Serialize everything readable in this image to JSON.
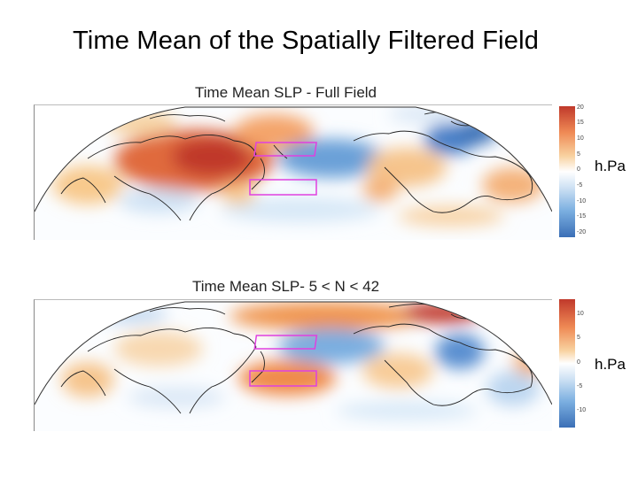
{
  "slide": {
    "title": "Time Mean of the Spatially Filtered Field"
  },
  "panels": [
    {
      "title": "Time Mean SLP - Full Field",
      "unit": "h.Pa",
      "colorbar_ticks": [
        "20",
        "15",
        "10",
        "5",
        "0",
        "-5",
        "-10",
        "-15",
        "-20"
      ],
      "colors": {
        "high": "#c0392b",
        "low": "#3b6fb6",
        "mid": "#ffffff",
        "box": "#e040e0"
      }
    },
    {
      "title": "Time Mean SLP- 5 < N < 42",
      "unit": "h.Pa",
      "colorbar_ticks": [
        "10",
        "5",
        "0",
        "-5",
        "-10"
      ],
      "colors": {
        "high": "#c0392b",
        "low": "#3b6fb6",
        "mid": "#ffffff",
        "box": "#e040e0"
      }
    }
  ]
}
